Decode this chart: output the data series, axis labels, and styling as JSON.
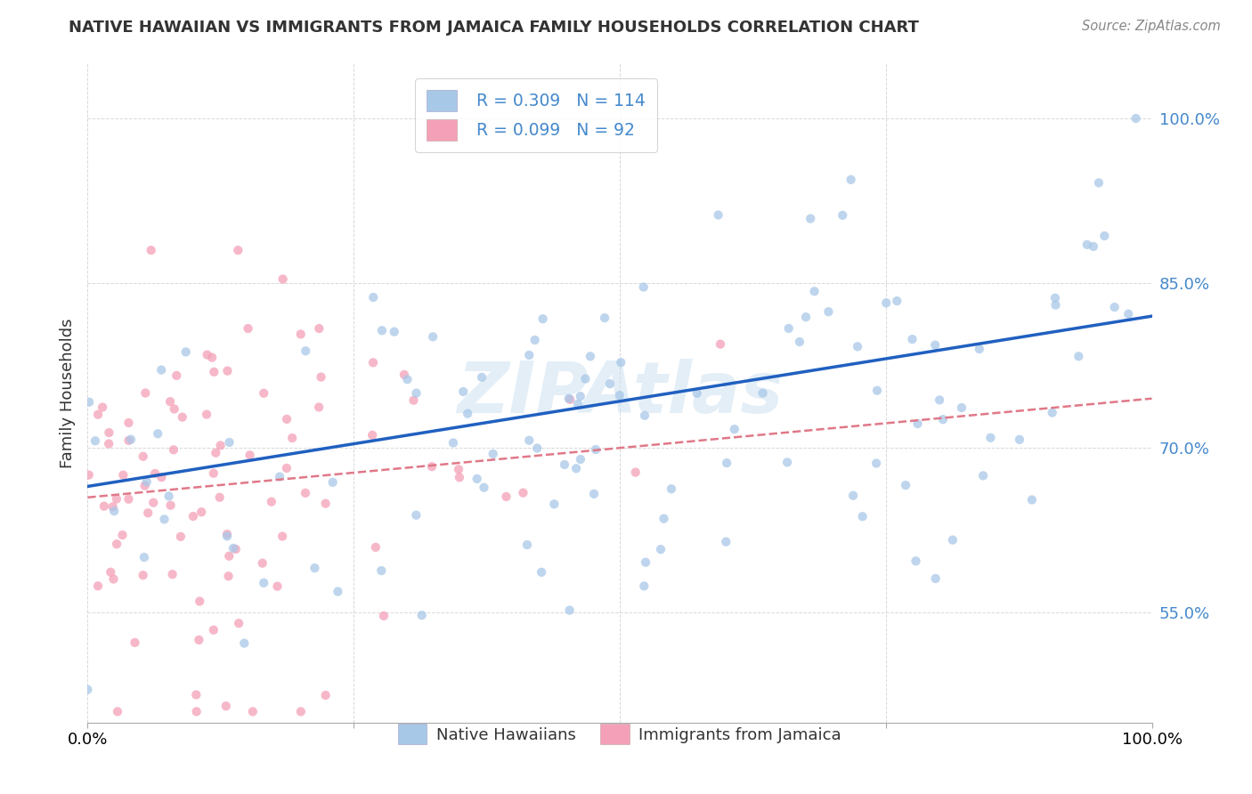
{
  "title": "NATIVE HAWAIIAN VS IMMIGRANTS FROM JAMAICA FAMILY HOUSEHOLDS CORRELATION CHART",
  "source": "Source: ZipAtlas.com",
  "ylabel": "Family Households",
  "r_blue": 0.309,
  "n_blue": 114,
  "r_pink": 0.099,
  "n_pink": 92,
  "blue_scatter_color": "#a8c8e8",
  "pink_scatter_color": "#f4a0b8",
  "blue_line_color": "#2060c0",
  "pink_line_color": "#e07888",
  "watermark": "ZIPAtlas",
  "ytick_labels": [
    "55.0%",
    "70.0%",
    "85.0%",
    "100.0%"
  ],
  "ytick_values": [
    0.55,
    0.7,
    0.85,
    1.0
  ],
  "xlim": [
    0.0,
    1.0
  ],
  "ylim": [
    0.45,
    1.05
  ],
  "background_color": "#ffffff",
  "grid_color": "#d8d8d8",
  "legend_label_blue": "Native Hawaiians",
  "legend_label_pink": "Immigrants from Jamaica",
  "tick_color": "#4488cc"
}
